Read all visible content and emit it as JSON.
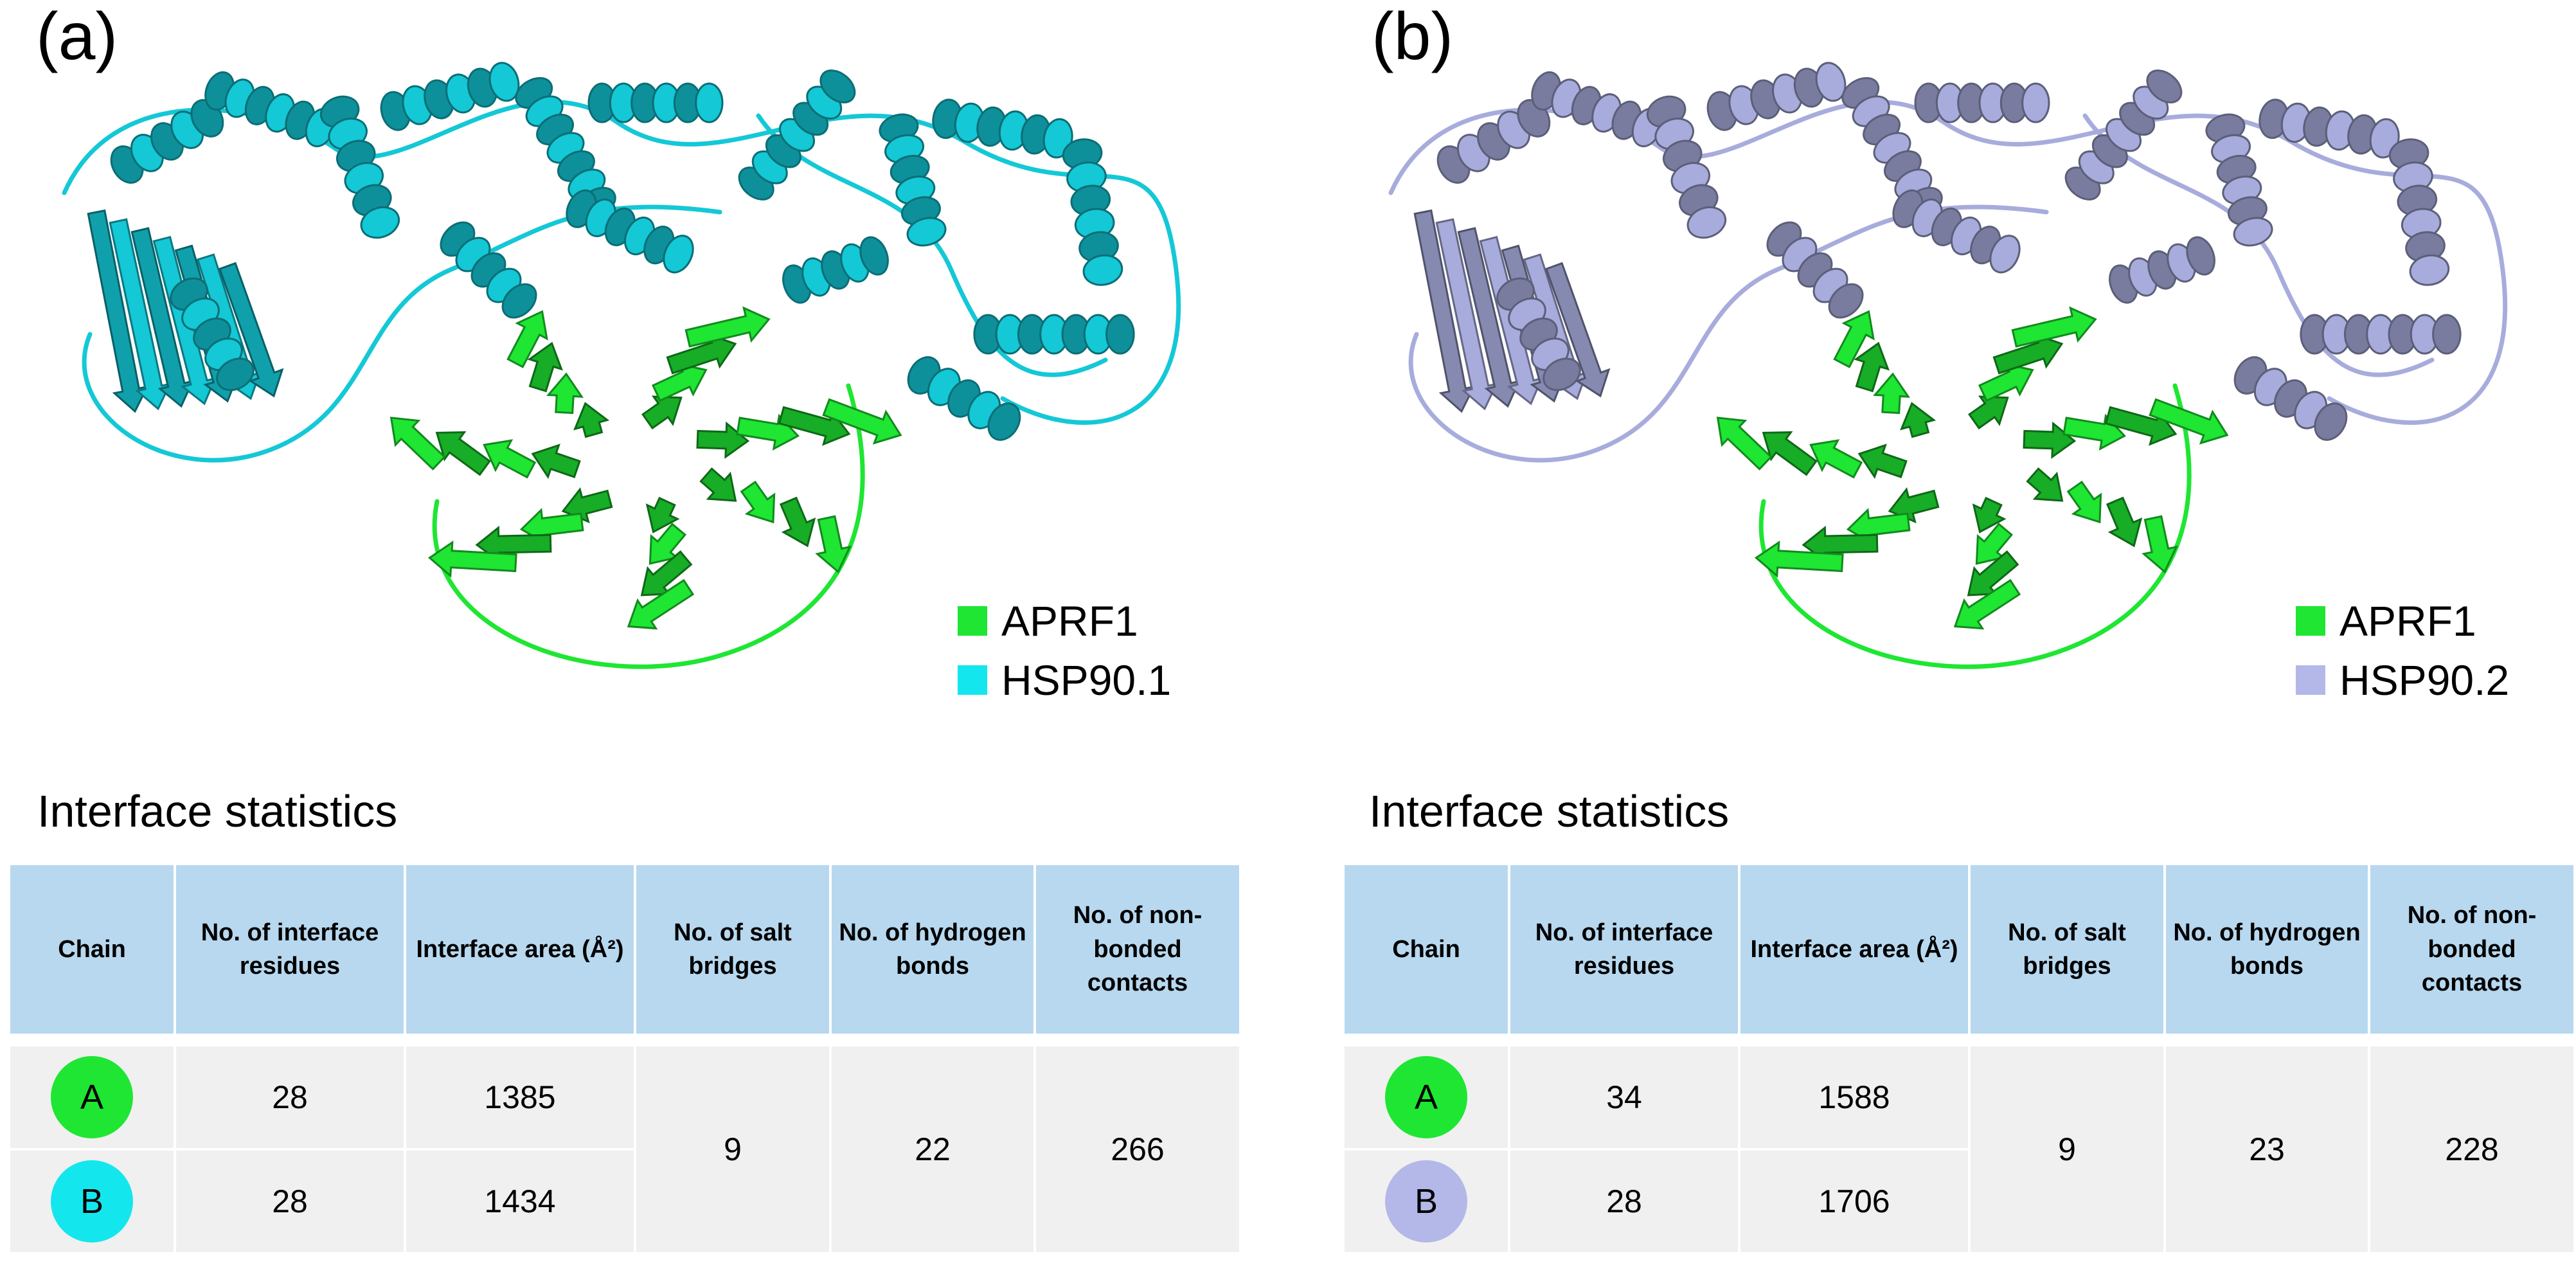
{
  "panels": [
    {
      "letter": "(a)",
      "legend": [
        {
          "label": "APRF1",
          "color": "#1ee632"
        },
        {
          "label": "HSP90.1",
          "color": "#14e6ee"
        }
      ],
      "table_title": "Interface statistics",
      "headers": [
        "Chain",
        "No. of interface residues",
        "Interface area (Å²)",
        "No. of salt bridges",
        "No. of hydrogen bonds",
        "No. of non-bonded contacts"
      ],
      "rows": [
        {
          "chain": "A",
          "chain_color": "#1ee632",
          "residues": "28",
          "area": "1385"
        },
        {
          "chain": "B",
          "chain_color": "#14e6ee",
          "residues": "28",
          "area": "1434"
        }
      ],
      "salt_bridges": "9",
      "hydrogen_bonds": "22",
      "nonbonded_contacts": "266",
      "protein_color": "#14c8d6"
    },
    {
      "letter": "(b)",
      "legend": [
        {
          "label": "APRF1",
          "color": "#1ee632"
        },
        {
          "label": "HSP90.2",
          "color": "#b4b8e8"
        }
      ],
      "table_title": "Interface statistics",
      "headers": [
        "Chain",
        "No. of interface residues",
        "Interface area (Å²)",
        "No. of salt bridges",
        "No. of hydrogen bonds",
        "No. of non-bonded contacts"
      ],
      "rows": [
        {
          "chain": "A",
          "chain_color": "#1ee632",
          "residues": "34",
          "area": "1588"
        },
        {
          "chain": "B",
          "chain_color": "#b4b8e8",
          "residues": "28",
          "area": "1706"
        }
      ],
      "salt_bridges": "9",
      "hydrogen_bonds": "23",
      "nonbonded_contacts": "228",
      "protein_color": "#a8acdc"
    }
  ]
}
